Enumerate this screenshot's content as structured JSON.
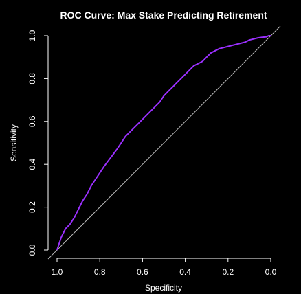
{
  "chart_data": {
    "type": "line",
    "title": "ROC Curve: Max Stake Predicting Retirement",
    "xlabel": "Specificity",
    "ylabel": "Sensitivity",
    "x_reversed": true,
    "xlim": [
      1.0,
      0.0
    ],
    "ylim": [
      0.0,
      1.0
    ],
    "xticks": [
      "1.0",
      "0.8",
      "0.6",
      "0.4",
      "0.2",
      "0.0"
    ],
    "xtick_values": [
      1.0,
      0.8,
      0.6,
      0.4,
      0.2,
      0.0
    ],
    "yticks": [
      "0.0",
      "0.2",
      "0.4",
      "0.6",
      "0.8",
      "1.0"
    ],
    "ytick_values": [
      0.0,
      0.2,
      0.4,
      0.6,
      0.8,
      1.0
    ],
    "grid": false,
    "colors": {
      "background": "#000000",
      "curve": "#9b30ff",
      "diagonal": "#bdbdbd",
      "axis": "#ffffff",
      "text": "#ffffff"
    },
    "series": [
      {
        "specificity": [
          1.0,
          0.99,
          0.98,
          0.97,
          0.96,
          0.94,
          0.92,
          0.9,
          0.88,
          0.86,
          0.84,
          0.82,
          0.8,
          0.78,
          0.75,
          0.72,
          0.7,
          0.68,
          0.65,
          0.62,
          0.6,
          0.57,
          0.55,
          0.52,
          0.5,
          0.48,
          0.46,
          0.44,
          0.42,
          0.4,
          0.38,
          0.36,
          0.34,
          0.32,
          0.3,
          0.28,
          0.26,
          0.24,
          0.22,
          0.2,
          0.18,
          0.16,
          0.14,
          0.12,
          0.1,
          0.08,
          0.06,
          0.04,
          0.02,
          0.01,
          0.0
        ],
        "sensitivity": [
          0.0,
          0.03,
          0.06,
          0.08,
          0.1,
          0.12,
          0.15,
          0.19,
          0.23,
          0.26,
          0.3,
          0.33,
          0.36,
          0.39,
          0.43,
          0.47,
          0.5,
          0.53,
          0.56,
          0.59,
          0.61,
          0.64,
          0.66,
          0.69,
          0.72,
          0.74,
          0.76,
          0.78,
          0.8,
          0.82,
          0.84,
          0.86,
          0.87,
          0.88,
          0.9,
          0.92,
          0.93,
          0.94,
          0.945,
          0.95,
          0.955,
          0.96,
          0.965,
          0.97,
          0.98,
          0.985,
          0.99,
          0.993,
          0.995,
          1.0,
          1.0
        ]
      }
    ],
    "reference_line": {
      "specificity": [
        1.0,
        0.0
      ],
      "sensitivity": [
        0.0,
        1.0
      ]
    }
  }
}
